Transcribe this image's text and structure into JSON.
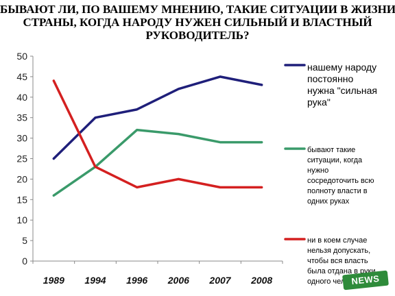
{
  "title": {
    "line1": "БЫВАЮТ ЛИ, ПО ВАШЕМУ МНЕНИЮ, ТАКИЕ СИТУАЦИИ В ЖИЗНИ",
    "line2": "СТРАНЫ, КОГДА НАРОДУ НУЖЕН СИЛЬНЫЙ И ВЛАСТНЫЙ",
    "line3": "РУКОВОДИТЕЛЬ?"
  },
  "chart_data": {
    "type": "line",
    "categories": [
      "1989",
      "1994",
      "1996",
      "2006",
      "2007",
      "2008"
    ],
    "ylim": [
      0,
      50
    ],
    "yticks": [
      0,
      5,
      10,
      15,
      20,
      25,
      30,
      35,
      40,
      45,
      50
    ],
    "grid": false,
    "legend_position": "right",
    "series": [
      {
        "name": "нашему народу постоянно нужна \"сильная рука\"",
        "name_lines": [
          "нашему народу",
          "постоянно",
          "нужна \"сильная",
          "рука\""
        ],
        "color": "#1f1f7a",
        "values": [
          25,
          35,
          37,
          42,
          45,
          43
        ]
      },
      {
        "name": "бывают такие ситуации, когда нужно сосредоточить всю полноту власти в одних руках",
        "name_lines": [
          "бывают такие",
          "ситуации, когда",
          "нужно",
          "сосредоточить всю",
          "полноту власти в",
          "одних руках"
        ],
        "color": "#3a9a6a",
        "values": [
          16,
          23,
          32,
          31,
          29,
          29
        ]
      },
      {
        "name": "ни в коем случае нельзя допускать, чтобы вся власть была отдана в руки одного чел",
        "name_lines": [
          "ни в коем случае",
          "нельзя допускать,",
          "чтобы вся власть",
          "была отдана в руки",
          "одного чел"
        ],
        "color": "#d42020",
        "values": [
          44,
          23,
          18,
          20,
          18,
          18
        ]
      }
    ]
  },
  "watermark": "NEWS"
}
